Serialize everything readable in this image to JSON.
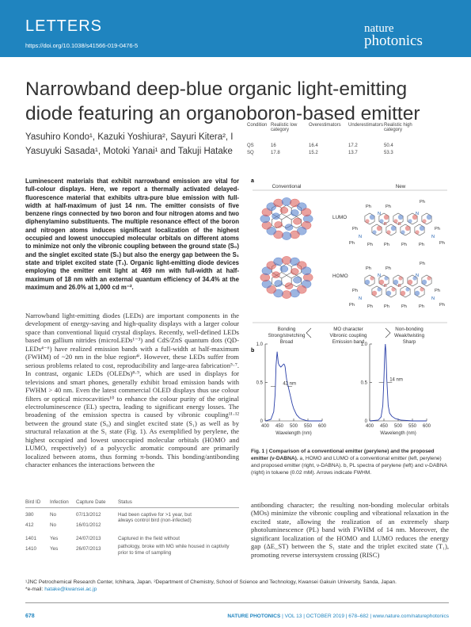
{
  "header": {
    "section": "LETTERS",
    "doi": "https://doi.org/10.1038/s41566-019-0476-5",
    "journal_line1": "nature",
    "journal_line2": "photonics"
  },
  "title": "Narrowband deep-blue organic light-emitting diode featuring an organoboron-based emitter",
  "authors_line1": "Yasuhiro Kondo¹, Kazuki Yoshiura², Sayuri Kitera², I",
  "authors_line2": "Yasuyuki Sasada¹, Motoki Yanai¹ and Takuji Hatake",
  "overlay_table": {
    "headers": [
      "Condition",
      "Realistic low category",
      "Overestimators",
      "Underestimators",
      "Realistic high category"
    ],
    "rows": [
      [
        "QS",
        "16",
        "16.4",
        "17.2",
        "50.4"
      ],
      [
        "SQ",
        "17.8",
        "15.2",
        "13.7",
        "53.3"
      ]
    ]
  },
  "abstract": "Luminescent materials that exhibit narrowband emission are vital for full-colour displays. Here, we report a thermally activated delayed-fluorescence material that exhibits ultra-pure blue emission with full-width at half-maximum of just 14 nm. The emitter consists of five benzene rings connected by two boron and four nitrogen atoms and two diphenylamino substituents. The multiple resonance effect of the boron and nitrogen atoms induces significant localization of the highest occupied and lowest unoccupied molecular orbitals on different atoms to minimize not only the vibronic coupling between the ground state (S₀) and the singlet excited state (S₁) but also the energy gap between the S₁ state and triplet excited state (T₁). Organic light-emitting diode devices employing the emitter emit light at 469 nm with full-width at half-maximum of 18 nm with an external quantum efficiency of 34.4% at the maximum and 26.0% at 1,000 cd m⁻².",
  "body_left": "Narrowband light-emitting diodes (LEDs) are important components in the development of energy-saving and high-quality displays with a larger colour space than conventional liquid crystal displays. Recently, well-defined LEDs based on gallium nitrides (microLEDs¹⁻³) and CdS/ZnS quantum dots (QD-LEDs⁴⁻⁶) have realized emission bands with a full-width at half-maximum (FWHM) of ~20 nm in the blue region⁴ⁱ. However, these LEDs suffer from serious problems related to cost, reproducibility and large-area fabrication⁵·⁷. In contrast, organic LEDs (OLEDs)⁸·⁹, which are used in displays for televisions and smart phones, generally exhibit broad emission bands with FWHM > 40 nm. Even the latest commercial OLED displays thus use colour filters or optical microcavities¹⁰ to enhance the colour purity of the original electroluminescence (EL) spectra, leading to significant energy losses. The broadening of the emission spectra is caused by vibronic coupling¹¹·¹² between the ground state (S₀) and singlet excited state (S₁) as well as by structural relaxation at the S₁ state (Fig. 1). As exemplified by perylene, the highest occupied and lowest unoccupied molecular orbitals (HOMO and LUMO, respectively) of a polycyclic aromatic compound are primarily localized between atoms, thus forming π-bonds. This bonding/antibonding character enhances the interactions between the",
  "bird_table": {
    "headers": [
      "Bird ID",
      "Infection",
      "Capture Date",
      "Status"
    ],
    "rows": [
      [
        "380",
        "No",
        "07/13/2012",
        "Had been captive for >1 year, but"
      ],
      [
        "412",
        "No",
        "16/01/2012",
        "always control bird (non-infected)"
      ],
      [
        "1401",
        "Yes",
        "24/07/2013",
        "Captured in the field without"
      ],
      [
        "1410",
        "Yes",
        "26/07/2013",
        "pathology, broke with MG while housed in captivity prior to time of sampling"
      ]
    ]
  },
  "figure": {
    "panel_a": "a",
    "panel_b": "b",
    "conventional": "Conventional",
    "new": "New",
    "lumo": "LUMO",
    "homo": "HOMO",
    "ph": "Ph",
    "n": "N",
    "b": "B",
    "col1": [
      "Bonding",
      "Strong/stretching",
      "Broad"
    ],
    "col2": [
      "MO character",
      "Vibronic coupling",
      "Emission band"
    ],
    "col3": [
      "Non-bonding",
      "Weak/twisting",
      "Sharp"
    ],
    "fwhm_left": "42 nm",
    "fwhm_right": "14 nm",
    "xlabel": "Wavelength (nm)",
    "y_ticks": [
      "1.0",
      "0.5",
      "0"
    ],
    "x_ticks": [
      "400",
      "450",
      "500",
      "550",
      "600"
    ]
  },
  "chart_data": [
    {
      "type": "line",
      "xlabel": "Wavelength (nm)",
      "ylabel": "",
      "xlim": [
        400,
        600
      ],
      "ylim": [
        0,
        1.0
      ],
      "annotations": [
        "42 nm"
      ],
      "series": [
        {
          "x": [
            400,
            420,
            430,
            435,
            438,
            442,
            446,
            450,
            455,
            460,
            465,
            468,
            470,
            473,
            476,
            480,
            485,
            490,
            495,
            500,
            510,
            520,
            530,
            550,
            600
          ],
          "y": [
            0,
            0.02,
            0.12,
            0.35,
            0.72,
            0.9,
            0.75,
            0.72,
            0.7,
            0.72,
            0.74,
            0.73,
            0.7,
            0.6,
            0.52,
            0.46,
            0.38,
            0.3,
            0.22,
            0.16,
            0.08,
            0.04,
            0.02,
            0.0,
            0
          ]
        }
      ]
    },
    {
      "type": "line",
      "xlabel": "Wavelength (nm)",
      "ylabel": "",
      "xlim": [
        400,
        600
      ],
      "ylim": [
        0,
        1.0
      ],
      "annotations": [
        "14 nm"
      ],
      "series": [
        {
          "x": [
            400,
            430,
            440,
            446,
            450,
            453,
            455,
            457,
            460,
            465,
            470,
            478,
            490,
            510,
            550,
            600
          ],
          "y": [
            0,
            0.01,
            0.05,
            0.2,
            0.55,
            0.9,
            1.0,
            0.9,
            0.55,
            0.2,
            0.1,
            0.06,
            0.03,
            0.01,
            0,
            0
          ]
        }
      ]
    }
  ],
  "caption_title": "Fig. 1 | Comparison of a conventional emitter (perylene) and the proposed emitter (ν-DABNA).",
  "caption_text": " a, HOMO and LUMO of a conventional emitter (left, perylene) and proposed emitter (right, ν-DABNA). b, PL spectra of perylene (left) and ν-DABNA (right) in toluene (0.02 mM). Arrows indicate FWHM.",
  "body_right": "antibonding character; the resulting non-bonding molecular orbitals (MOs) minimize the vibronic coupling and vibrational relaxation in the excited state, allowing the realization of an extremely sharp photoluminescence (PL) band with FWHM of 14 nm. Moreover, the significant localization of the HOMO and LUMO reduces the energy gap (ΔE_ST) between the S₁ state and the triplet excited state (T₁), promoting reverse intersystem crossing (RISC)",
  "affiliations": "¹JNC Petrochemical Research Center, Ichihara, Japan. ²Department of Chemistry, School of Science and Technology, Kwansei Gakuin University, Sanda, Japan.",
  "email_label": "*e-mail: ",
  "email": "hatake@kwansei.ac.jp",
  "page_number": "678",
  "footer_journal": "NATURE PHOTONICS",
  "footer_rest": " | VOL 13 | OCTOBER 2019 | 678–682 | www.nature.com/naturephotonics",
  "colors": {
    "accent": "#1f84bf",
    "orbital_red": "#d9534f",
    "orbital_blue": "#4a78c9",
    "curve": "#2a3fa8"
  }
}
